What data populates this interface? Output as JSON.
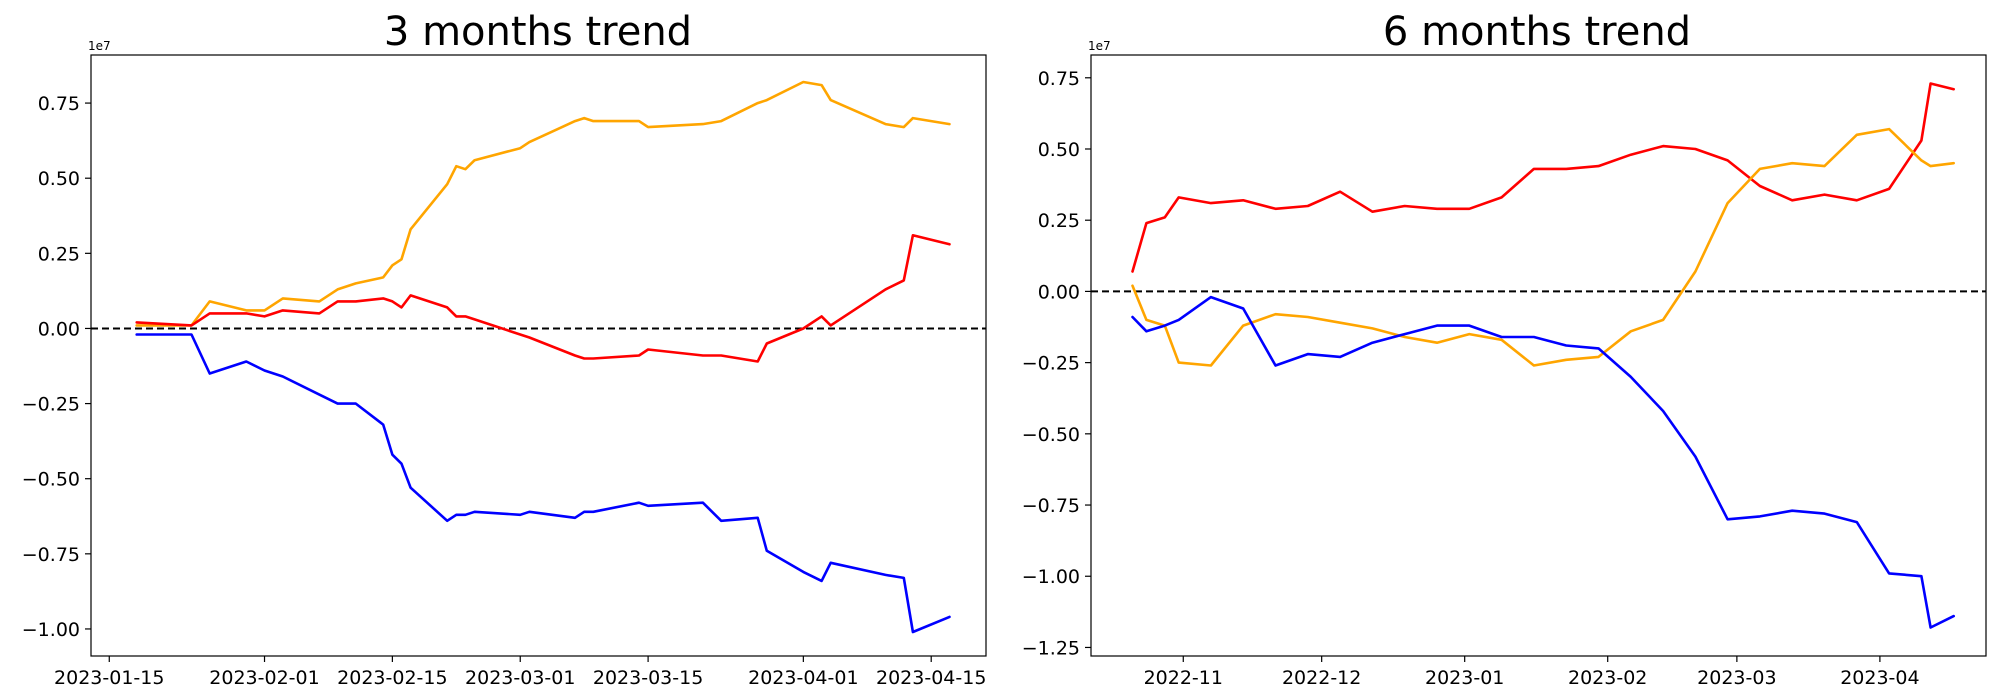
{
  "chart_data": [
    {
      "type": "line",
      "title": "3 months trend",
      "xlabel": "",
      "ylabel": "",
      "y_offset_text": "1e7",
      "ylim": [
        -10900000,
        9100000
      ],
      "xlim": [
        "2023-01-13",
        "2023-04-21"
      ],
      "yticks": [
        -10000000,
        -7500000,
        -5000000,
        -2500000,
        0,
        2500000,
        5000000,
        7500000
      ],
      "ytick_labels": [
        "−1.00",
        "−0.75",
        "−0.50",
        "−0.25",
        "0.00",
        "0.25",
        "0.50",
        "0.75"
      ],
      "xticks": [
        "2023-01-15",
        "2023-02-01",
        "2023-02-15",
        "2023-03-01",
        "2023-03-15",
        "2023-04-01",
        "2023-04-15"
      ],
      "xtick_labels": [
        "2023-01-15",
        "2023-02-01",
        "2023-02-15",
        "2023-03-01",
        "2023-03-15",
        "2023-04-01",
        "2023-04-15"
      ],
      "zero_line": {
        "y": 0,
        "color": "#000000",
        "style": "dashed"
      },
      "grid": false,
      "series": [
        {
          "color": "#ffa500",
          "x": [
            "2023-01-18",
            "2023-01-24",
            "2023-01-26",
            "2023-01-30",
            "2023-02-01",
            "2023-02-03",
            "2023-02-07",
            "2023-02-09",
            "2023-02-11",
            "2023-02-14",
            "2023-02-15",
            "2023-02-16",
            "2023-02-17",
            "2023-02-21",
            "2023-02-22",
            "2023-02-23",
            "2023-02-24",
            "2023-03-01",
            "2023-03-02",
            "2023-03-07",
            "2023-03-08",
            "2023-03-09",
            "2023-03-14",
            "2023-03-15",
            "2023-03-21",
            "2023-03-23",
            "2023-03-27",
            "2023-03-28",
            "2023-04-01",
            "2023-04-03",
            "2023-04-04",
            "2023-04-10",
            "2023-04-12",
            "2023-04-13",
            "2023-04-17"
          ],
          "values": [
            100000,
            100000,
            900000,
            600000,
            600000,
            1000000,
            900000,
            1300000,
            1500000,
            1700000,
            2100000,
            2300000,
            3300000,
            4800000,
            5400000,
            5300000,
            5600000,
            6000000,
            6200000,
            6900000,
            7000000,
            6900000,
            6900000,
            6700000,
            6800000,
            6900000,
            7500000,
            7600000,
            8200000,
            8100000,
            7600000,
            6800000,
            6700000,
            7000000,
            6800000
          ]
        },
        {
          "color": "#ff0000",
          "x": [
            "2023-01-18",
            "2023-01-24",
            "2023-01-26",
            "2023-01-30",
            "2023-02-01",
            "2023-02-03",
            "2023-02-07",
            "2023-02-09",
            "2023-02-11",
            "2023-02-14",
            "2023-02-15",
            "2023-02-16",
            "2023-02-17",
            "2023-02-21",
            "2023-02-22",
            "2023-02-23",
            "2023-02-24",
            "2023-03-01",
            "2023-03-02",
            "2023-03-07",
            "2023-03-08",
            "2023-03-09",
            "2023-03-14",
            "2023-03-15",
            "2023-03-21",
            "2023-03-23",
            "2023-03-27",
            "2023-03-28",
            "2023-04-01",
            "2023-04-03",
            "2023-04-04",
            "2023-04-10",
            "2023-04-12",
            "2023-04-13",
            "2023-04-17"
          ],
          "values": [
            200000,
            100000,
            500000,
            500000,
            400000,
            600000,
            500000,
            900000,
            900000,
            1000000,
            900000,
            700000,
            1100000,
            700000,
            400000,
            400000,
            300000,
            -200000,
            -300000,
            -900000,
            -1000000,
            -1000000,
            -900000,
            -700000,
            -900000,
            -900000,
            -1100000,
            -500000,
            0,
            400000,
            100000,
            1300000,
            1600000,
            3100000,
            2800000
          ]
        },
        {
          "color": "#0000ff",
          "x": [
            "2023-01-18",
            "2023-01-24",
            "2023-01-26",
            "2023-01-30",
            "2023-02-01",
            "2023-02-03",
            "2023-02-07",
            "2023-02-09",
            "2023-02-11",
            "2023-02-14",
            "2023-02-15",
            "2023-02-16",
            "2023-02-17",
            "2023-02-21",
            "2023-02-22",
            "2023-02-23",
            "2023-02-24",
            "2023-03-01",
            "2023-03-02",
            "2023-03-07",
            "2023-03-08",
            "2023-03-09",
            "2023-03-14",
            "2023-03-15",
            "2023-03-21",
            "2023-03-23",
            "2023-03-27",
            "2023-03-28",
            "2023-04-01",
            "2023-04-03",
            "2023-04-04",
            "2023-04-10",
            "2023-04-12",
            "2023-04-13",
            "2023-04-17"
          ],
          "values": [
            -200000,
            -200000,
            -1500000,
            -1100000,
            -1400000,
            -1600000,
            -2200000,
            -2500000,
            -2500000,
            -3200000,
            -4200000,
            -4500000,
            -5300000,
            -6400000,
            -6200000,
            -6200000,
            -6100000,
            -6200000,
            -6100000,
            -6300000,
            -6100000,
            -6100000,
            -5800000,
            -5900000,
            -5800000,
            -6400000,
            -6300000,
            -7400000,
            -8100000,
            -8400000,
            -7800000,
            -8200000,
            -8300000,
            -10100000,
            -9600000
          ]
        }
      ]
    },
    {
      "type": "line",
      "title": "6 months trend",
      "xlabel": "",
      "ylabel": "",
      "y_offset_text": "1e7",
      "ylim": [
        -12800000,
        8300000
      ],
      "xlim": [
        "2022-10-12",
        "2023-04-24"
      ],
      "yticks": [
        -12500000,
        -10000000,
        -7500000,
        -5000000,
        -2500000,
        0,
        2500000,
        5000000,
        7500000
      ],
      "ytick_labels": [
        "−1.25",
        "−1.00",
        "−0.75",
        "−0.50",
        "−0.25",
        "0.00",
        "0.25",
        "0.50",
        "0.75"
      ],
      "xticks": [
        "2022-11-01",
        "2022-12-01",
        "2023-01-01",
        "2023-02-01",
        "2023-03-01",
        "2023-04-01"
      ],
      "xtick_labels": [
        "2022-11",
        "2022-12",
        "2023-01",
        "2023-02",
        "2023-03",
        "2023-04"
      ],
      "zero_line": {
        "y": 0,
        "color": "#000000",
        "style": "dashed"
      },
      "grid": false,
      "series": [
        {
          "color": "#ff0000",
          "x": [
            "2022-10-21",
            "2022-10-24",
            "2022-10-28",
            "2022-10-31",
            "2022-11-07",
            "2022-11-14",
            "2022-11-21",
            "2022-11-28",
            "2022-12-05",
            "2022-12-12",
            "2022-12-19",
            "2022-12-26",
            "2023-01-02",
            "2023-01-09",
            "2023-01-16",
            "2023-01-23",
            "2023-01-30",
            "2023-02-06",
            "2023-02-13",
            "2023-02-20",
            "2023-02-27",
            "2023-03-06",
            "2023-03-13",
            "2023-03-20",
            "2023-03-27",
            "2023-04-03",
            "2023-04-10",
            "2023-04-12",
            "2023-04-17"
          ],
          "values": [
            700000,
            2400000,
            2600000,
            3300000,
            3100000,
            3200000,
            2900000,
            3000000,
            3500000,
            2800000,
            3000000,
            2900000,
            2900000,
            3300000,
            4300000,
            4300000,
            4400000,
            4800000,
            5100000,
            5000000,
            4600000,
            3700000,
            3200000,
            3400000,
            3200000,
            3600000,
            5300000,
            7300000,
            7100000
          ]
        },
        {
          "color": "#ffa500",
          "x": [
            "2022-10-21",
            "2022-10-24",
            "2022-10-28",
            "2022-10-31",
            "2022-11-07",
            "2022-11-14",
            "2022-11-21",
            "2022-11-28",
            "2022-12-05",
            "2022-12-12",
            "2022-12-19",
            "2022-12-26",
            "2023-01-02",
            "2023-01-09",
            "2023-01-16",
            "2023-01-23",
            "2023-01-30",
            "2023-02-06",
            "2023-02-13",
            "2023-02-20",
            "2023-02-27",
            "2023-03-06",
            "2023-03-13",
            "2023-03-20",
            "2023-03-27",
            "2023-04-03",
            "2023-04-10",
            "2023-04-12",
            "2023-04-17"
          ],
          "values": [
            200000,
            -1000000,
            -1200000,
            -2500000,
            -2600000,
            -1200000,
            -800000,
            -900000,
            -1100000,
            -1300000,
            -1600000,
            -1800000,
            -1500000,
            -1700000,
            -2600000,
            -2400000,
            -2300000,
            -1400000,
            -1000000,
            700000,
            3100000,
            4300000,
            4500000,
            4400000,
            5500000,
            5700000,
            4600000,
            4400000,
            4500000
          ]
        },
        {
          "color": "#0000ff",
          "x": [
            "2022-10-21",
            "2022-10-24",
            "2022-10-28",
            "2022-10-31",
            "2022-11-07",
            "2022-11-14",
            "2022-11-21",
            "2022-11-28",
            "2022-12-05",
            "2022-12-12",
            "2022-12-19",
            "2022-12-26",
            "2023-01-02",
            "2023-01-09",
            "2023-01-16",
            "2023-01-23",
            "2023-01-30",
            "2023-02-06",
            "2023-02-13",
            "2023-02-20",
            "2023-02-27",
            "2023-03-06",
            "2023-03-13",
            "2023-03-20",
            "2023-03-27",
            "2023-04-03",
            "2023-04-10",
            "2023-04-12",
            "2023-04-17"
          ],
          "values": [
            -900000,
            -1400000,
            -1200000,
            -1000000,
            -200000,
            -600000,
            -2600000,
            -2200000,
            -2300000,
            -1800000,
            -1500000,
            -1200000,
            -1200000,
            -1600000,
            -1600000,
            -1900000,
            -2000000,
            -3000000,
            -4200000,
            -5800000,
            -8000000,
            -7900000,
            -7700000,
            -7800000,
            -8100000,
            -9900000,
            -10000000,
            -11800000,
            -11400000
          ]
        }
      ]
    }
  ]
}
